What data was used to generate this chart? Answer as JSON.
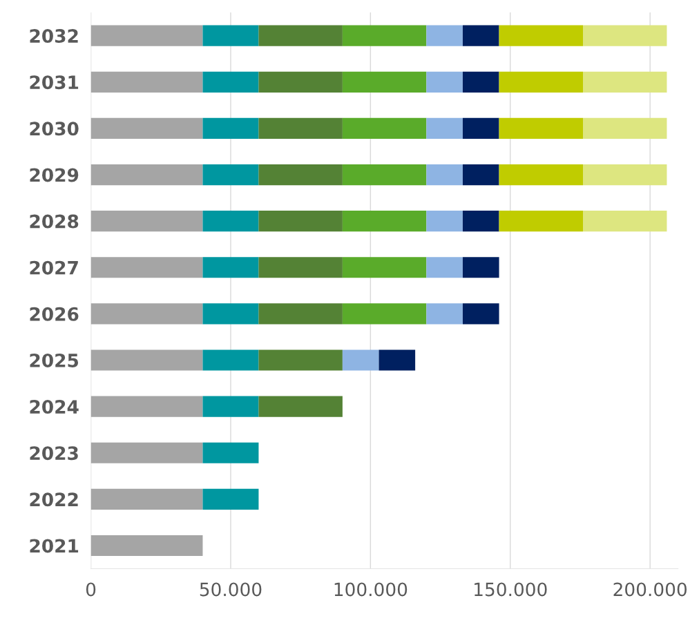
{
  "chart_data": {
    "type": "bar",
    "orientation": "horizontal",
    "stacked": true,
    "categories": [
      "2032",
      "2031",
      "2030",
      "2029",
      "2028",
      "2027",
      "2026",
      "2025",
      "2024",
      "2023",
      "2022",
      "2021"
    ],
    "series": [
      {
        "color": "#a5a5a5",
        "values": [
          40000,
          40000,
          40000,
          40000,
          40000,
          40000,
          40000,
          40000,
          40000,
          40000,
          40000,
          40000
        ]
      },
      {
        "color": "#0097a0",
        "values": [
          20000,
          20000,
          20000,
          20000,
          20000,
          20000,
          20000,
          20000,
          20000,
          20000,
          20000,
          null
        ]
      },
      {
        "color": "#548235",
        "values": [
          30000,
          30000,
          30000,
          30000,
          30000,
          30000,
          30000,
          30000,
          30000,
          null,
          null,
          null
        ]
      },
      {
        "color": "#5aab2a",
        "values": [
          30000,
          30000,
          30000,
          30000,
          30000,
          30000,
          30000,
          null,
          null,
          null,
          null,
          null
        ]
      },
      {
        "color": "#8eb4e3",
        "values": [
          13000,
          13000,
          13000,
          13000,
          13000,
          13000,
          13000,
          13000,
          null,
          null,
          null,
          null
        ]
      },
      {
        "color": "#002060",
        "values": [
          13000,
          13000,
          13000,
          13000,
          13000,
          13000,
          13000,
          13000,
          null,
          null,
          null,
          null
        ]
      },
      {
        "color": "#c0cc00",
        "values": [
          30000,
          30000,
          30000,
          30000,
          30000,
          null,
          null,
          null,
          null,
          null,
          null,
          null
        ]
      },
      {
        "color": "#dde680",
        "values": [
          30000,
          30000,
          30000,
          30000,
          30000,
          null,
          null,
          null,
          null,
          null,
          null,
          null
        ]
      }
    ],
    "xlim": [
      0,
      210000
    ],
    "xticks": [
      {
        "value": 0,
        "label": "0"
      },
      {
        "value": 50000,
        "label": "50.000"
      },
      {
        "value": 100000,
        "label": "100.000"
      },
      {
        "value": 150000,
        "label": "150.000"
      },
      {
        "value": 200000,
        "label": "200.000"
      }
    ],
    "grid": "x"
  }
}
